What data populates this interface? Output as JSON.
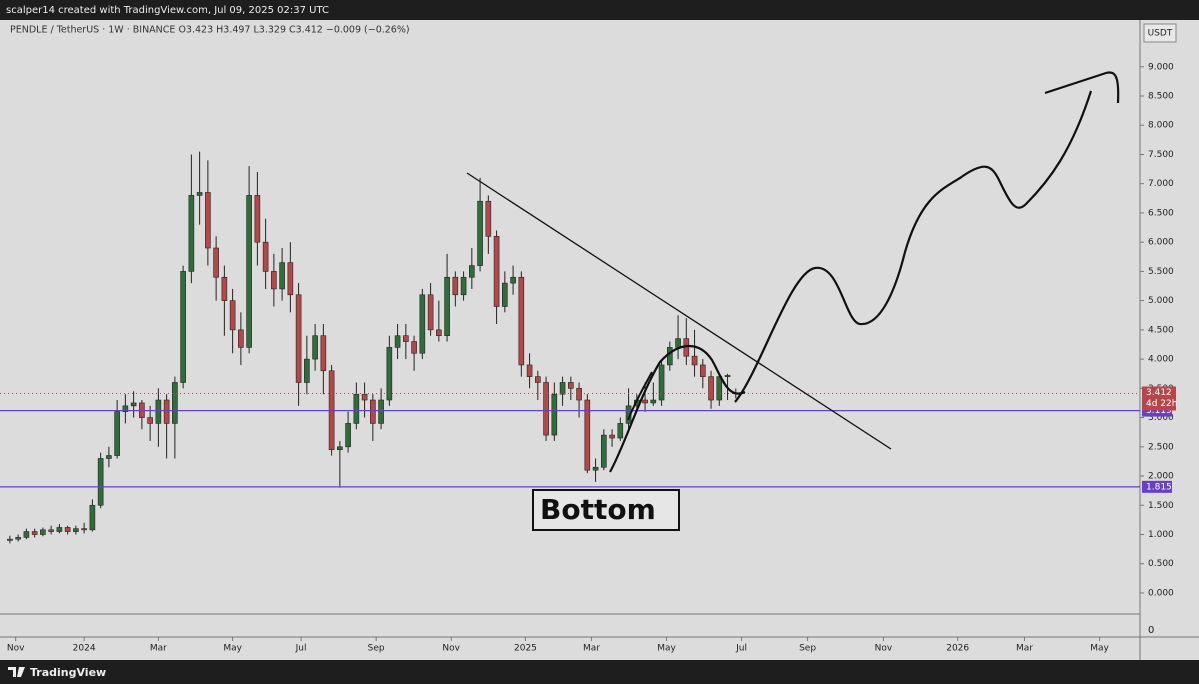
{
  "banner": "scalper14 created with TradingView.com, Jul 09, 2025 02:37 UTC",
  "footer": "TradingView",
  "chart_data": {
    "type": "candlestick",
    "title": "PENDLE / TetherUS · 1W · BINANCE  O3.423  H3.497  L3.329  C3.412  −0.009 (−0.26%)",
    "currency": "USDT",
    "up_color": "#2f6e3b",
    "down_color": "#b5474b",
    "open": [
      0.9,
      0.92,
      0.95,
      1.05,
      1.0,
      1.08,
      1.05,
      1.12,
      1.05,
      1.1,
      1.08,
      1.5,
      2.3,
      2.35,
      3.1,
      3.2,
      3.25,
      3.0,
      2.9,
      3.3,
      2.9,
      3.6,
      5.5,
      6.8,
      6.85,
      5.9,
      5.4,
      5.0,
      4.5,
      4.2,
      6.8,
      6.0,
      5.5,
      5.2,
      5.65,
      5.1,
      3.6,
      4.0,
      4.4,
      3.8,
      2.45,
      2.5,
      2.9,
      3.4,
      3.3,
      2.9,
      3.3,
      4.2,
      4.4,
      4.3,
      4.1,
      5.1,
      4.5,
      4.4,
      5.4,
      5.1,
      5.4,
      5.6,
      6.7,
      6.1,
      4.9,
      5.3,
      5.4,
      3.9,
      3.7,
      3.6,
      2.7,
      3.4,
      3.6,
      3.5,
      3.3,
      2.1,
      2.15,
      2.7,
      2.65,
      2.9,
      3.2,
      3.3,
      3.25,
      3.3,
      3.9,
      4.2,
      4.35,
      4.05,
      3.9,
      3.7,
      3.3,
      3.7,
      3.423
    ],
    "high": [
      0.98,
      1.0,
      1.1,
      1.1,
      1.12,
      1.15,
      1.18,
      1.15,
      1.15,
      1.2,
      1.6,
      2.4,
      2.5,
      3.3,
      3.4,
      3.45,
      3.3,
      3.2,
      3.5,
      3.4,
      3.7,
      5.6,
      7.5,
      7.55,
      7.4,
      6.1,
      5.6,
      5.2,
      4.8,
      7.3,
      7.2,
      6.4,
      5.8,
      5.9,
      6.0,
      5.3,
      4.4,
      4.6,
      4.6,
      3.9,
      2.6,
      3.1,
      3.6,
      3.6,
      3.4,
      3.5,
      4.4,
      4.6,
      4.6,
      4.4,
      5.2,
      5.3,
      5.0,
      5.8,
      5.5,
      5.5,
      5.9,
      7.1,
      6.8,
      6.2,
      5.5,
      5.6,
      5.5,
      4.1,
      3.8,
      3.7,
      3.6,
      3.7,
      3.7,
      3.6,
      3.4,
      2.3,
      2.8,
      2.8,
      3.0,
      3.5,
      3.4,
      3.6,
      3.6,
      4.0,
      4.3,
      4.75,
      4.7,
      4.5,
      4.0,
      3.8,
      3.75,
      3.75,
      3.497
    ],
    "low": [
      0.85,
      0.88,
      0.92,
      0.95,
      0.97,
      1.0,
      1.02,
      1.0,
      1.0,
      1.02,
      1.05,
      1.45,
      2.15,
      2.3,
      2.9,
      3.0,
      2.8,
      2.6,
      2.5,
      2.3,
      2.3,
      3.5,
      5.3,
      6.3,
      5.6,
      5.0,
      4.4,
      4.1,
      3.9,
      4.1,
      5.6,
      5.2,
      4.9,
      5.0,
      4.8,
      3.2,
      3.4,
      3.8,
      3.4,
      2.35,
      1.8,
      2.4,
      2.8,
      3.0,
      2.6,
      2.8,
      3.2,
      4.0,
      4.0,
      3.8,
      4.0,
      4.4,
      4.3,
      4.3,
      4.9,
      5.0,
      5.2,
      5.5,
      5.8,
      4.6,
      4.8,
      5.1,
      3.7,
      3.5,
      3.3,
      2.6,
      2.6,
      3.2,
      3.3,
      3.0,
      2.05,
      1.9,
      2.1,
      2.5,
      2.6,
      2.8,
      3.1,
      3.1,
      3.2,
      3.2,
      3.8,
      4.0,
      3.9,
      3.7,
      3.5,
      3.15,
      3.2,
      3.3,
      3.329
    ],
    "close": [
      0.92,
      0.95,
      1.05,
      1.0,
      1.08,
      1.05,
      1.12,
      1.05,
      1.1,
      1.08,
      1.5,
      2.3,
      2.35,
      3.1,
      3.2,
      3.25,
      3.0,
      2.9,
      3.3,
      2.9,
      3.6,
      5.5,
      6.8,
      6.85,
      5.9,
      5.4,
      5.0,
      4.5,
      4.2,
      6.8,
      6.0,
      5.5,
      5.2,
      5.65,
      5.1,
      3.6,
      4.0,
      4.4,
      3.8,
      2.45,
      2.5,
      2.9,
      3.4,
      3.3,
      2.9,
      3.3,
      4.2,
      4.4,
      4.3,
      4.1,
      5.1,
      4.5,
      4.4,
      5.4,
      5.1,
      5.4,
      5.6,
      6.7,
      6.1,
      4.9,
      5.3,
      5.4,
      3.9,
      3.7,
      3.6,
      2.7,
      3.4,
      3.6,
      3.5,
      3.3,
      2.1,
      2.15,
      2.7,
      2.65,
      2.9,
      3.2,
      3.3,
      3.25,
      3.3,
      3.9,
      4.2,
      4.35,
      4.05,
      3.9,
      3.7,
      3.3,
      3.7,
      3.72,
      3.412
    ],
    "xlim": [
      -1.2,
      137
    ],
    "xticks": [
      {
        "value": 0.7,
        "label": "Nov"
      },
      {
        "value": 9,
        "label": "2024"
      },
      {
        "value": 18,
        "label": "Mar"
      },
      {
        "value": 27,
        "label": "May"
      },
      {
        "value": 35.3,
        "label": "Jul"
      },
      {
        "value": 44.4,
        "label": "Sep"
      },
      {
        "value": 53.5,
        "label": "Nov"
      },
      {
        "value": 62.5,
        "label": "2025"
      },
      {
        "value": 70.5,
        "label": "Mar"
      },
      {
        "value": 79.6,
        "label": "May"
      },
      {
        "value": 88.7,
        "label": "Jul"
      },
      {
        "value": 96.7,
        "label": "Sep"
      },
      {
        "value": 105.9,
        "label": "Nov"
      },
      {
        "value": 114.9,
        "label": "2026"
      },
      {
        "value": 123,
        "label": "Mar"
      },
      {
        "value": 132.1,
        "label": "May"
      }
    ],
    "ylim": [
      -0.36,
      9.8
    ],
    "yticks": [
      {
        "value": 0,
        "label": "0.000"
      },
      {
        "value": 0.5,
        "label": "0.500"
      },
      {
        "value": 1,
        "label": "1.000"
      },
      {
        "value": 1.5,
        "label": "1.500"
      },
      {
        "value": 2,
        "label": "2.000"
      },
      {
        "value": 2.5,
        "label": "2.500"
      },
      {
        "value": 3,
        "label": "3.000"
      },
      {
        "value": 3.5,
        "label": "3.500"
      },
      {
        "value": 4,
        "label": "4.000"
      },
      {
        "value": 4.5,
        "label": "4.500"
      },
      {
        "value": 5,
        "label": "5.000"
      },
      {
        "value": 5.5,
        "label": "5.500"
      },
      {
        "value": 6,
        "label": "6.000"
      },
      {
        "value": 6.5,
        "label": "6.500"
      },
      {
        "value": 7,
        "label": "7.000"
      },
      {
        "value": 7.5,
        "label": "7.500"
      },
      {
        "value": 8,
        "label": "8.000"
      },
      {
        "value": 8.5,
        "label": "8.500"
      },
      {
        "value": 9,
        "label": "9.000"
      }
    ],
    "levels": [
      {
        "value": 3.119,
        "label": "3.119",
        "color": "#6b3fc4"
      },
      {
        "value": 1.815,
        "label": "1.815",
        "color": "#6b3fc4"
      }
    ],
    "last_price": {
      "value": 3.412,
      "label": "3.412",
      "countdown": "4d 22h",
      "color": "#b5474b"
    },
    "annotations": [
      "Bottom"
    ],
    "lower_pane_label": "0"
  }
}
